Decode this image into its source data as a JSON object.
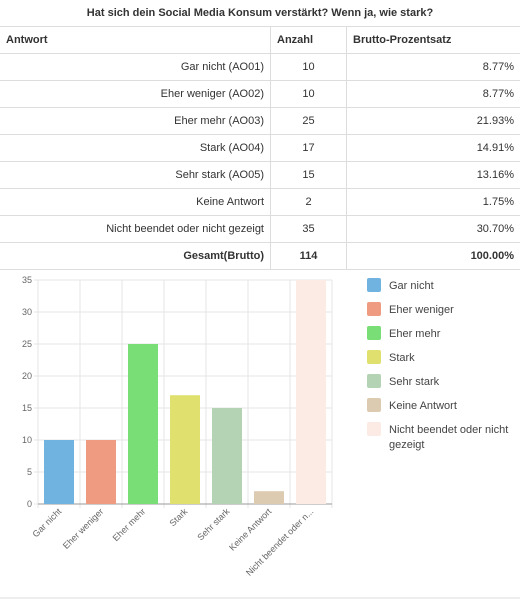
{
  "table": {
    "title": "Hat sich dein Social Media Konsum verstärkt? Wenn ja, wie stark?",
    "headers": [
      "Antwort",
      "Anzahl",
      "Brutto-Prozentsatz"
    ],
    "rows": [
      [
        "Gar nicht (AO01)",
        "10",
        "8.77%"
      ],
      [
        "Eher weniger (AO02)",
        "10",
        "8.77%"
      ],
      [
        "Eher mehr (AO03)",
        "25",
        "21.93%"
      ],
      [
        "Stark (AO04)",
        "17",
        "14.91%"
      ],
      [
        "Sehr stark (AO05)",
        "15",
        "13.16%"
      ],
      [
        "Keine Antwort",
        "2",
        "1.75%"
      ],
      [
        "Nicht beendet oder nicht gezeigt",
        "35",
        "30.70%"
      ]
    ],
    "total": [
      "Gesamt(Brutto)",
      "114",
      "100.00%"
    ]
  },
  "chart_data": {
    "type": "bar",
    "categories": [
      "Gar nicht",
      "Eher weniger",
      "Eher mehr",
      "Stark",
      "Sehr stark",
      "Keine Antwort",
      "Nicht beendet oder n..."
    ],
    "values": [
      10,
      10,
      25,
      17,
      15,
      2,
      35
    ],
    "colors": [
      "#71b3e0",
      "#ef9b82",
      "#78de75",
      "#e0e06f",
      "#b4d3b4",
      "#ddcbb1",
      "#fbebe4"
    ],
    "legend": [
      "Gar nicht",
      "Eher weniger",
      "Eher mehr",
      "Stark",
      "Sehr stark",
      "Keine Antwort",
      "Nicht beendet oder nicht gezeigt"
    ],
    "ylim": [
      0,
      35
    ],
    "yticks": [
      0,
      5,
      10,
      15,
      20,
      25,
      30,
      35
    ],
    "grid": true
  }
}
